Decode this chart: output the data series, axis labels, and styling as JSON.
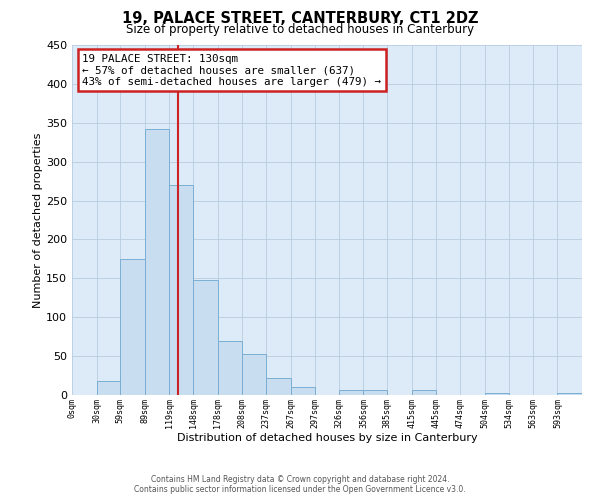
{
  "title": "19, PALACE STREET, CANTERBURY, CT1 2DZ",
  "subtitle": "Size of property relative to detached houses in Canterbury",
  "xlabel": "Distribution of detached houses by size in Canterbury",
  "ylabel": "Number of detached properties",
  "bar_color": "#c8ddf0",
  "bar_edge_color": "#7aaed4",
  "bg_color": "#ddeaf7",
  "grid_color": "#b8cde0",
  "annot_bg": "#ffffff",
  "annot_edge": "#cc2222",
  "vline_color": "#cc2222",
  "vline_x": 130,
  "annotation_line1": "19 PALACE STREET: 130sqm",
  "annotation_line2": "← 57% of detached houses are smaller (637)",
  "annotation_line3": "43% of semi-detached houses are larger (479) →",
  "tick_labels": [
    "0sqm",
    "30sqm",
    "59sqm",
    "89sqm",
    "119sqm",
    "148sqm",
    "178sqm",
    "208sqm",
    "237sqm",
    "267sqm",
    "297sqm",
    "326sqm",
    "356sqm",
    "385sqm",
    "415sqm",
    "445sqm",
    "474sqm",
    "504sqm",
    "534sqm",
    "563sqm",
    "593sqm"
  ],
  "bin_edges": [
    0,
    30,
    59,
    89,
    119,
    148,
    178,
    208,
    237,
    267,
    297,
    326,
    356,
    385,
    415,
    445,
    474,
    504,
    534,
    563,
    593,
    623
  ],
  "bar_heights": [
    0,
    18,
    175,
    342,
    270,
    148,
    69,
    53,
    22,
    10,
    0,
    6,
    6,
    0,
    7,
    0,
    0,
    2,
    0,
    0,
    2
  ],
  "ylim": [
    0,
    450
  ],
  "yticks": [
    0,
    50,
    100,
    150,
    200,
    250,
    300,
    350,
    400,
    450
  ],
  "footer_line1": "Contains HM Land Registry data © Crown copyright and database right 2024.",
  "footer_line2": "Contains public sector information licensed under the Open Government Licence v3.0."
}
